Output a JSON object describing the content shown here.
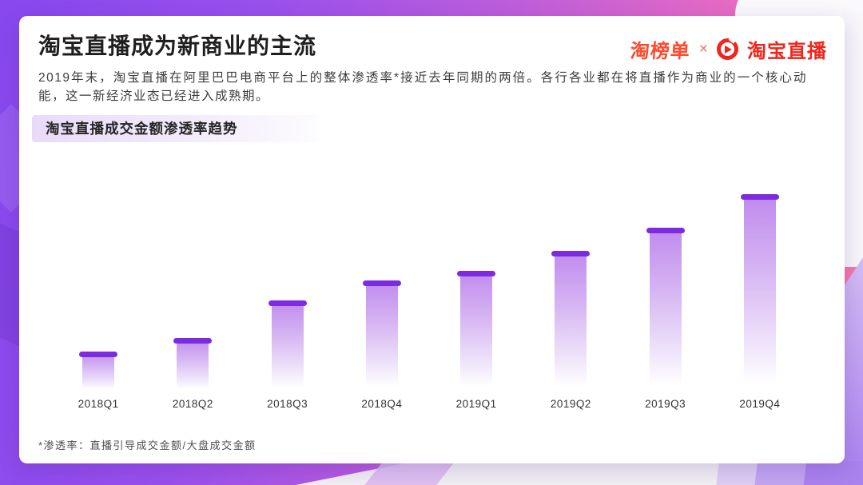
{
  "slide": {
    "title": "淘宝直播成为新商业的主流",
    "description": "2019年末，淘宝直播在阿里巴巴电商平台上的整体渗透率*接近去年同期的两倍。各行各业都在将直播作为商业的一个核心动能，这一新经济业态已经进入成熟期。",
    "footnote": "*渗透率：直播引导成交金额/大盘成交金额"
  },
  "brand": {
    "left_logo_text": "淘榜单",
    "separator": "×",
    "right_logo_text": "淘宝直播",
    "left_logo_color": "#ff4a2e",
    "separator_color": "#ee6f66",
    "right_logo_color": "#f1251b",
    "icon": "taobao-live-play-icon"
  },
  "chart_badge": {
    "label": "淘宝直播成交金额渗透率趋势"
  },
  "chart_data": {
    "type": "bar",
    "title": "淘宝直播成交金额渗透率趋势",
    "categories": [
      "2018Q1",
      "2018Q2",
      "2018Q3",
      "2018Q4",
      "2019Q1",
      "2019Q2",
      "2019Q3",
      "2019Q4"
    ],
    "values": [
      20,
      27,
      46,
      56,
      61,
      71,
      83,
      100
    ],
    "xlabel": "",
    "ylabel": "",
    "ylim": [
      0,
      100
    ],
    "y_axis_visible": false,
    "grid": false,
    "legend": false,
    "colors": {
      "cap": "#7d2be0",
      "body_top": "#bf8aed",
      "body_fade": "#ffffff"
    }
  },
  "theme": {
    "accent_purple": "#7d2be0",
    "background_gradient_left": "#8748ee",
    "background_gradient_right": "#f57fa8",
    "badge_background": "#e9dbf8"
  }
}
